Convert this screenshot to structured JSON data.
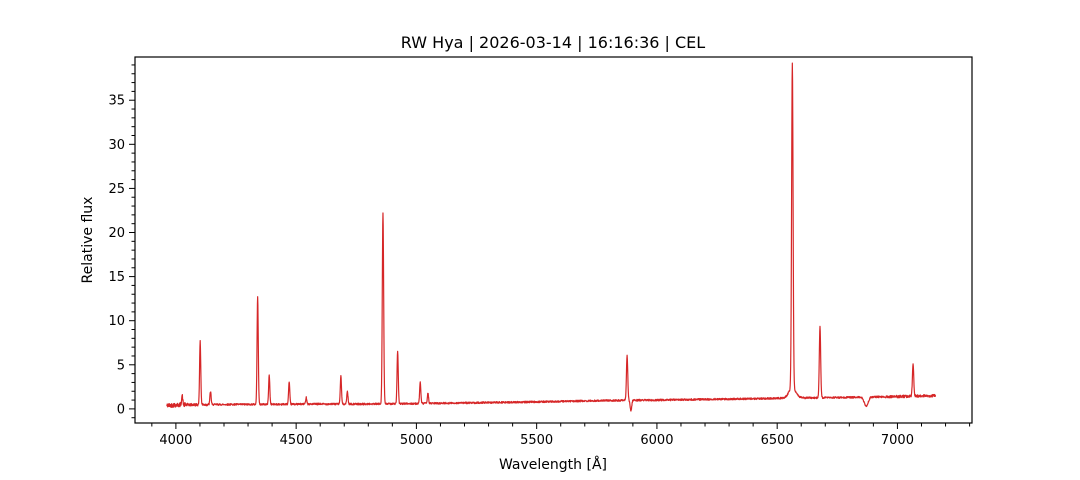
{
  "chart_data": {
    "type": "line",
    "title": "RW Hya | 2026-03-14 | 16:16:36 | CEL",
    "xlabel": "Wavelength [Å]",
    "ylabel": "Relative flux",
    "xlim": [
      3830,
      7310
    ],
    "ylim": [
      -1.6,
      39.9
    ],
    "xticks": [
      4000,
      4500,
      5000,
      5500,
      6000,
      6500,
      7000
    ],
    "yticks": [
      0,
      5,
      10,
      15,
      20,
      25,
      30,
      35
    ],
    "x_minor_step": 100,
    "y_minor_step": 1,
    "grid": false,
    "legend": "none",
    "line_color": "#d62728",
    "axis_color": "#000000",
    "background_color": "#ffffff",
    "wavelength_range": [
      3962,
      7158
    ],
    "continuum_points": [
      [
        3962,
        0.38
      ],
      [
        4000,
        0.45
      ],
      [
        4200,
        0.5
      ],
      [
        4400,
        0.52
      ],
      [
        4600,
        0.55
      ],
      [
        4800,
        0.55
      ],
      [
        5000,
        0.6
      ],
      [
        5200,
        0.68
      ],
      [
        5400,
        0.75
      ],
      [
        5600,
        0.85
      ],
      [
        5800,
        0.95
      ],
      [
        6000,
        1.0
      ],
      [
        6200,
        1.08
      ],
      [
        6400,
        1.15
      ],
      [
        6600,
        1.25
      ],
      [
        6800,
        1.3
      ],
      [
        7000,
        1.4
      ],
      [
        7158,
        1.5
      ]
    ],
    "noise": {
      "base": 0.1,
      "blue_end": 0.25,
      "blue_mid": 0.15,
      "red_end": 0.15,
      "seed": 42
    },
    "emission_lines": [
      {
        "wavelength": 4026,
        "peak_flux": 1.5,
        "sigma": 2.5
      },
      {
        "wavelength": 4101,
        "peak_flux": 7.6,
        "sigma": 2.5
      },
      {
        "wavelength": 4144,
        "peak_flux": 2.0,
        "sigma": 2.5
      },
      {
        "wavelength": 4340,
        "peak_flux": 12.8,
        "sigma": 2.5
      },
      {
        "wavelength": 4388,
        "peak_flux": 3.8,
        "sigma": 2.5
      },
      {
        "wavelength": 4471,
        "peak_flux": 3.0,
        "sigma": 2.5
      },
      {
        "wavelength": 4542,
        "peak_flux": 1.3,
        "sigma": 2.5
      },
      {
        "wavelength": 4686,
        "peak_flux": 3.7,
        "sigma": 2.5
      },
      {
        "wavelength": 4713,
        "peak_flux": 2.0,
        "sigma": 2.5
      },
      {
        "wavelength": 4861,
        "peak_flux": 22.2,
        "sigma": 2.8
      },
      {
        "wavelength": 4922,
        "peak_flux": 6.5,
        "sigma": 2.5
      },
      {
        "wavelength": 5016,
        "peak_flux": 3.0,
        "sigma": 2.5
      },
      {
        "wavelength": 5048,
        "peak_flux": 1.8,
        "sigma": 2.5
      },
      {
        "wavelength": 5876,
        "peak_flux": 6.0,
        "sigma": 2.8
      },
      {
        "wavelength": 6563,
        "peak_flux": 38.0,
        "sigma": 3.0
      },
      {
        "wavelength": 6678,
        "peak_flux": 9.3,
        "sigma": 2.8
      },
      {
        "wavelength": 7065,
        "peak_flux": 5.0,
        "sigma": 2.8
      }
    ],
    "broad_wings": [
      {
        "wavelength": 6563,
        "amplitude": 1.2,
        "sigma": 14
      }
    ],
    "absorption_features": [
      {
        "wavelength": 5892,
        "depth": 1.25,
        "sigma": 3
      },
      {
        "wavelength": 6870,
        "depth": 1.05,
        "sigma": 8
      }
    ]
  }
}
